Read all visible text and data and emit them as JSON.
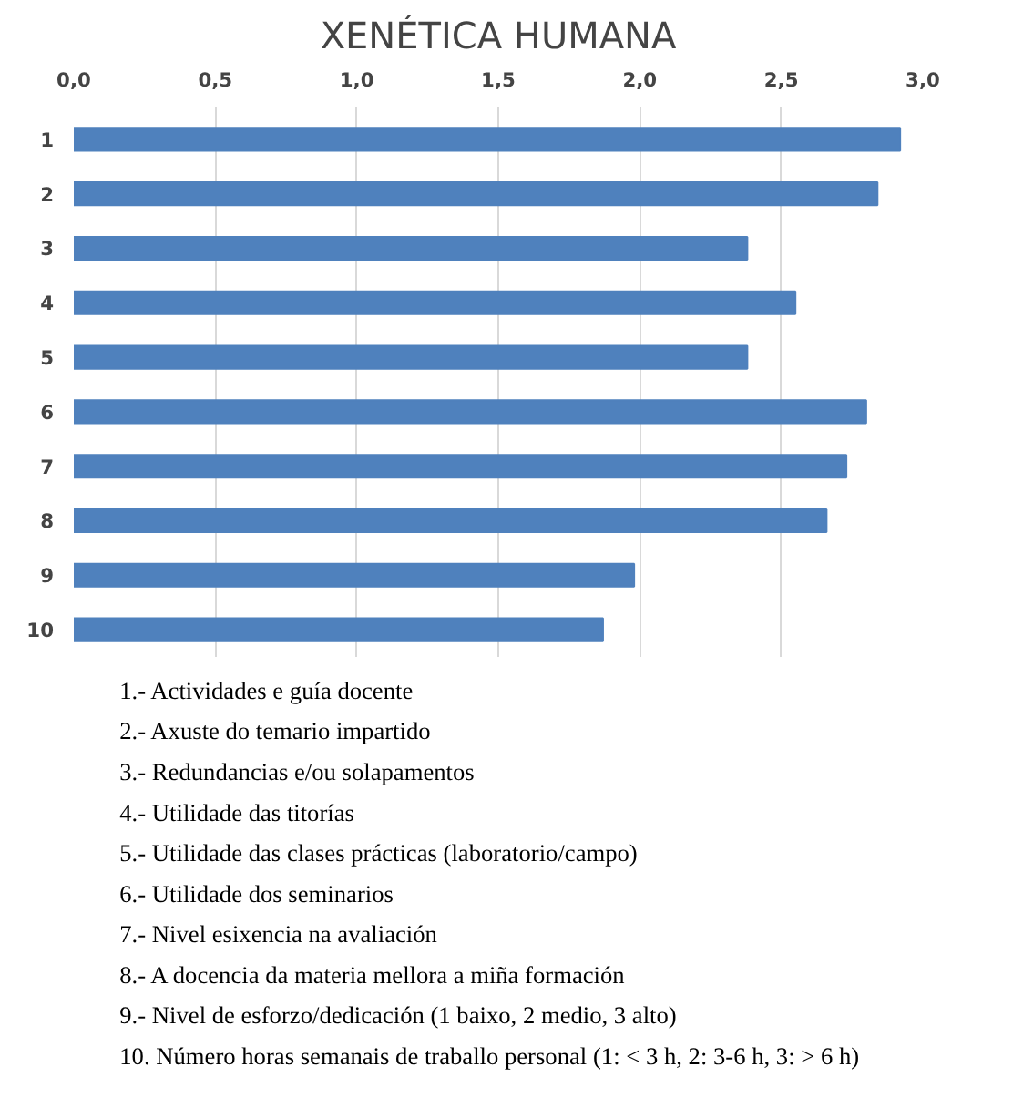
{
  "chart_data": {
    "type": "bar",
    "orientation": "horizontal",
    "title": "XENÉTICA HUMANA",
    "categories": [
      "1",
      "2",
      "3",
      "4",
      "5",
      "6",
      "7",
      "8",
      "9",
      "10"
    ],
    "values": [
      2.92,
      2.84,
      2.38,
      2.55,
      2.38,
      2.8,
      2.73,
      2.66,
      1.98,
      1.87
    ],
    "color": "#4f81bd",
    "xlim": [
      0,
      3.0
    ],
    "xticks": [
      {
        "value": 0,
        "label": "0,0"
      },
      {
        "value": 0.5,
        "label": "0,5"
      },
      {
        "value": 1,
        "label": "1,0"
      },
      {
        "value": 1.5,
        "label": "1,5"
      },
      {
        "value": 2,
        "label": "2,0"
      },
      {
        "value": 2.5,
        "label": "2,5"
      },
      {
        "value": 3,
        "label": "3,0"
      }
    ],
    "grid": "x",
    "annotations": [
      "1.- Actividades e guía docente",
      "2.- Axuste do temario impartido",
      "3.- Redundancias e/ou solapamentos",
      "4.- Utilidade das titorías",
      "5.- Utilidade das clases prácticas (laboratorio/campo)",
      "6.- Utilidade dos seminarios",
      "7.- Nivel esixencia na avaliación",
      "8.- A docencia da materia mellora a miña formación",
      "9.- Nivel de esforzo/dedicación (1 baixo, 2 medio, 3 alto)",
      "10. Número horas semanais de traballo personal (1: < 3 h, 2: 3-6 h, 3: > 6 h)"
    ]
  }
}
